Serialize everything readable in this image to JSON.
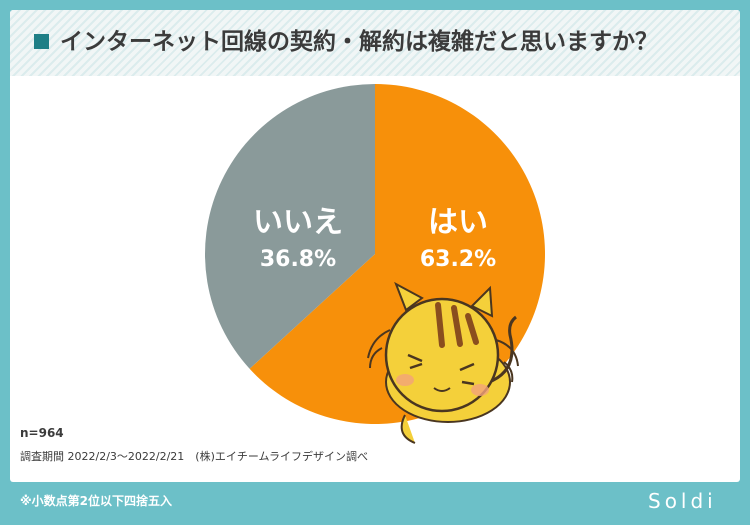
{
  "title": "インターネット回線の契約・解約は複雑だと思いますか？",
  "chart_data": {
    "type": "pie",
    "slices": [
      {
        "label": "はい",
        "value": 63.2,
        "display": "63.2%",
        "color": "#f7900a"
      },
      {
        "label": "いいえ",
        "value": 36.8,
        "display": "36.8%",
        "color": "#8a9a9a"
      }
    ]
  },
  "sample_size": "n=964",
  "survey_info": "調査期間 2022/2/3〜2022/2/21　(株)エイチームライフデザイン調べ",
  "footnote": "※小数点第2位以下四捨五入",
  "logo": "Soldi"
}
